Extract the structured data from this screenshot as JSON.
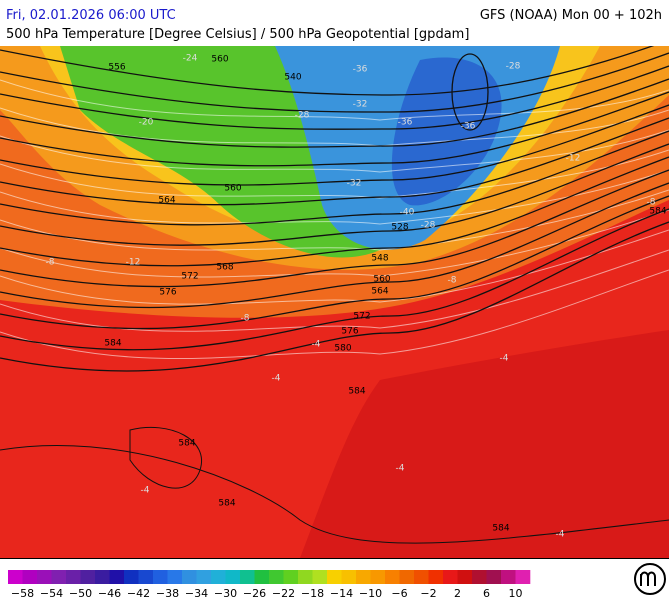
{
  "header": {
    "datetime": "Fri, 02.01.2026 06:00 UTC",
    "model": "GFS (NOAA) Mon 00 + 102h",
    "subtitle": "500 hPa Temperature [Degree Celsius] / 500 hPa Geopotential [gpdam]"
  },
  "map": {
    "geopotential_labels": [
      556,
      560,
      540,
      560,
      564,
      568,
      572,
      576,
      584,
      528,
      548,
      560,
      564,
      572,
      576,
      580,
      584,
      584,
      584,
      584,
      584
    ],
    "temperature_labels": [
      -24,
      -28,
      -36,
      -32,
      -36,
      -36,
      -28,
      -32,
      -40,
      -28,
      -20,
      -12,
      -8,
      -8,
      -12,
      -8,
      -8,
      -4,
      -4,
      -4,
      -4,
      -4,
      -4
    ]
  },
  "colorbar": {
    "labels": [
      "−58",
      "−54",
      "−50",
      "−46",
      "−42",
      "−38",
      "−34",
      "−30",
      "−26",
      "−22",
      "−18",
      "−14",
      "−10",
      "−6",
      "−2",
      "2",
      "6",
      "10"
    ],
    "colors": [
      "#cc00cc",
      "#b000c0",
      "#9a10b8",
      "#8020b0",
      "#6a20a8",
      "#5020a0",
      "#3a1ca0",
      "#2010a8",
      "#1030c0",
      "#1848d0",
      "#2060e0",
      "#2878e8",
      "#3090e0",
      "#30a0e0",
      "#20b0d8",
      "#10b8c8",
      "#10c090",
      "#20c040",
      "#40c830",
      "#60d020",
      "#90d820",
      "#b0e020",
      "#f8d000",
      "#f8c000",
      "#f8a800",
      "#f89800",
      "#f88000",
      "#f06800",
      "#f05000",
      "#f03000",
      "#e81818",
      "#d01010",
      "#b01030",
      "#a01050",
      "#c01080",
      "#e020b0"
    ]
  }
}
